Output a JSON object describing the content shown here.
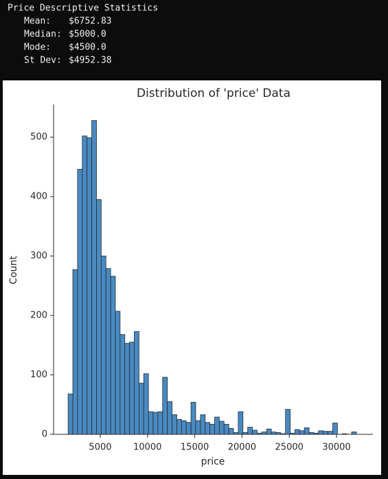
{
  "output": {
    "heading": "Price Descriptive Statistics",
    "stats": [
      {
        "label": "Mean:",
        "value": "$6752.83"
      },
      {
        "label": "Median:",
        "value": "$5000.0"
      },
      {
        "label": "Mode:",
        "value": "$4500.0"
      },
      {
        "label": "St Dev:",
        "value": "$4952.38"
      }
    ]
  },
  "chart_data": {
    "type": "histogram",
    "title": "Distribution of 'price' Data",
    "x_label": "price",
    "y_label": "Count",
    "bins": [
      1600,
      2100,
      2600,
      3100,
      3600,
      4100,
      4600,
      5100,
      5600,
      6100,
      6600,
      7100,
      7600,
      8100,
      8600,
      9100,
      9600,
      10100,
      10600,
      11100,
      11600,
      12100,
      12600,
      13100,
      13600,
      14100,
      14600,
      15100,
      15600,
      16100,
      16600,
      17100,
      17600,
      18100,
      18600,
      19100,
      19600,
      20100,
      20600,
      21100,
      21600,
      22100,
      22600,
      23100,
      23600,
      24100,
      24600,
      25100,
      25600,
      26100,
      26600,
      27100,
      27600,
      28100,
      28600,
      29100,
      29600,
      30100,
      30600,
      31100,
      31600,
      32100
    ],
    "values": [
      68,
      277,
      446,
      502,
      499,
      528,
      395,
      300,
      279,
      266,
      207,
      168,
      153,
      155,
      173,
      86,
      102,
      38,
      37,
      38,
      96,
      55,
      33,
      25,
      23,
      20,
      54,
      23,
      33,
      20,
      17,
      29,
      22,
      17,
      10,
      3,
      38,
      3,
      12,
      7,
      2,
      4,
      9,
      4,
      3,
      1,
      42,
      2,
      8,
      6,
      11,
      3,
      2,
      6,
      5,
      5,
      19,
      0,
      1,
      0,
      4
    ],
    "color": "#4a8ac0",
    "xlim": [
      60,
      33850
    ],
    "ylim": [
      0,
      555
    ],
    "xticks": [
      5000,
      10000,
      15000,
      20000,
      25000,
      30000
    ],
    "yticks": [
      0,
      100,
      200,
      300,
      400,
      500
    ]
  }
}
